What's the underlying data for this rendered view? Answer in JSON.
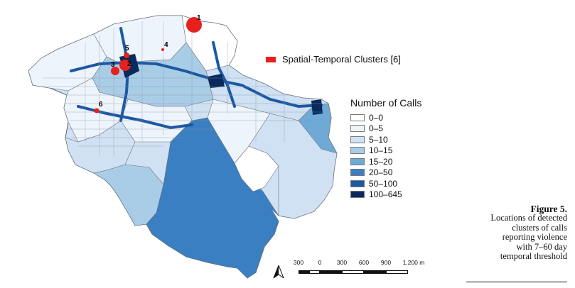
{
  "legend": {
    "title": "Number of Calls",
    "classes": [
      {
        "label": "0–0",
        "color": "#ffffff"
      },
      {
        "label": "0–5",
        "color": "#eef4fb"
      },
      {
        "label": "5–10",
        "color": "#cfe1f2"
      },
      {
        "label": "10–15",
        "color": "#a9cde6"
      },
      {
        "label": "15–20",
        "color": "#6fa9d6"
      },
      {
        "label": "20–50",
        "color": "#3a7fc1"
      },
      {
        "label": "50–100",
        "color": "#1d58a4"
      },
      {
        "label": "100–645",
        "color": "#0b2a5c"
      }
    ]
  },
  "cluster_legend": {
    "label": "Spatial-Temporal Clusters [6]",
    "color": "#e8201b"
  },
  "clusters": [
    {
      "id": "1",
      "size": "large"
    },
    {
      "id": "2",
      "size": "medium"
    },
    {
      "id": "3",
      "size": "medium"
    },
    {
      "id": "4",
      "size": "small"
    },
    {
      "id": "5",
      "size": "small"
    },
    {
      "id": "6",
      "size": "small"
    }
  ],
  "scale_bar": {
    "labels": [
      "300",
      "0",
      "300",
      "600",
      "900",
      "1,200 m"
    ]
  },
  "north_arrow": {
    "icon": "north-arrow-icon"
  },
  "caption": {
    "figure": "Figure 5.",
    "lines": [
      "Locations of detected",
      "clusters of calls",
      "reporting violence",
      "with 7–60 day",
      "temporal threshold"
    ]
  }
}
